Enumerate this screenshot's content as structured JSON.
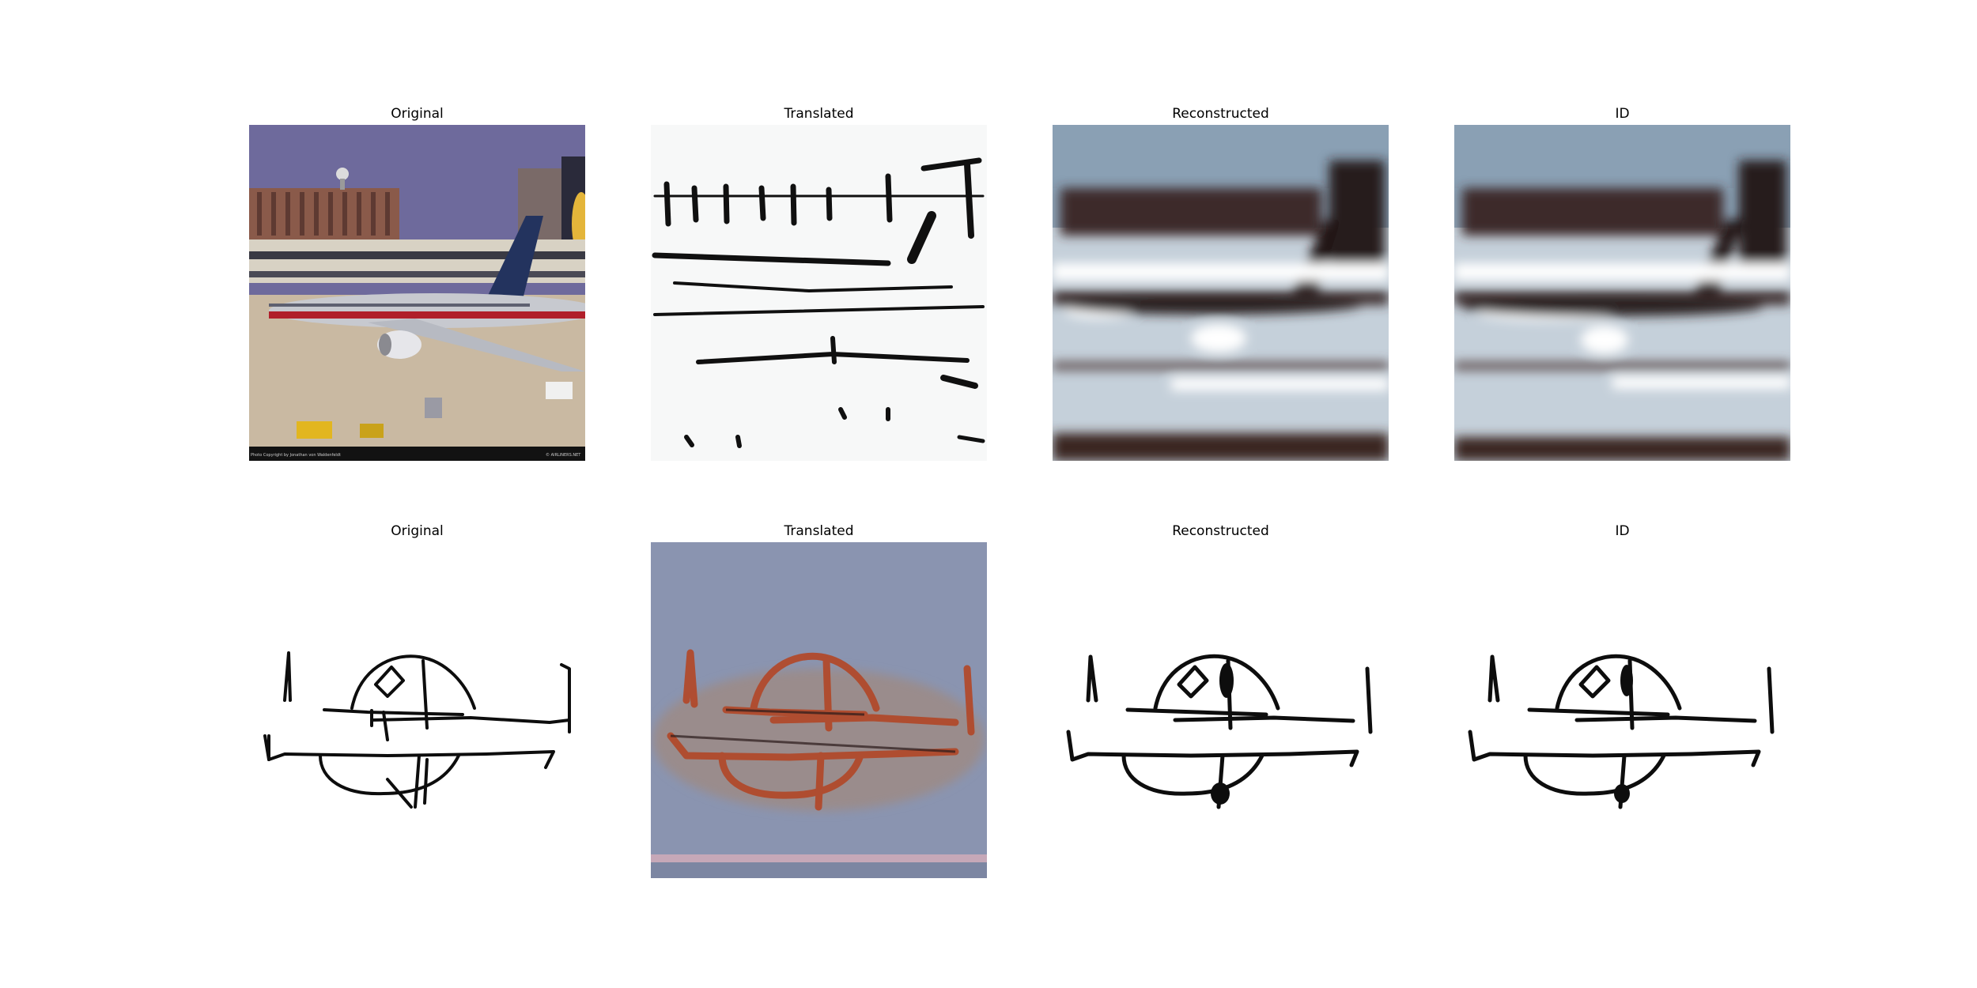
{
  "figure": {
    "row1": {
      "titles": [
        "Original",
        "Translated",
        "Reconstructed",
        "ID"
      ],
      "photo_watermark_left": "Photo Copyright by Jonathan von Waldenfeldt",
      "photo_watermark_right": "© AIRLINERS.NET"
    },
    "row2": {
      "titles": [
        "Original",
        "Translated",
        "Reconstructed",
        "ID"
      ]
    }
  },
  "colors": {
    "sky": "#6e6a9c",
    "tarmac": "#c9b9a2",
    "blur_sky": "#8aa0b4",
    "blur_ground": "#c5d0da",
    "ink": "#111111",
    "translated_bg": "#8a94b0",
    "translated_stroke": "#b14a2c"
  }
}
